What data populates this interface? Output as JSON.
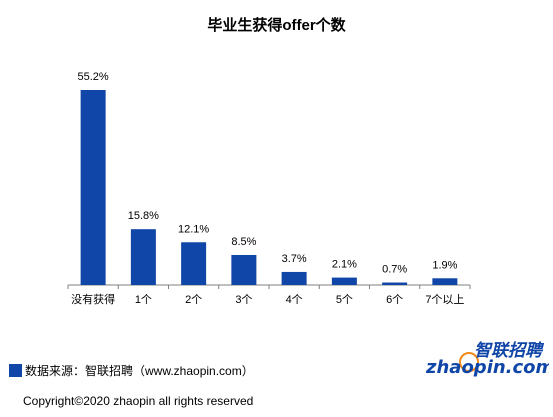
{
  "chart_data": {
    "type": "bar",
    "title": "毕业生获得offer个数",
    "categories": [
      "没有获得",
      "1个",
      "2个",
      "3个",
      "4个",
      "5个",
      "6个",
      "7个以上"
    ],
    "values": [
      55.2,
      15.8,
      12.1,
      8.5,
      3.7,
      2.1,
      0.7,
      1.9
    ],
    "value_labels": [
      "55.2%",
      "15.8%",
      "12.1%",
      "8.5%",
      "3.7%",
      "2.1%",
      "0.7%",
      "1.9%"
    ],
    "ylim": [
      0,
      55.2
    ],
    "grid": false,
    "bar_color": "#1046a8"
  },
  "footer": {
    "source_text": "数据来源：智联招聘（www.zhaopin.com）",
    "copyright": "Copyright©2020 zhaopin all rights reserved"
  },
  "logo": {
    "cn_text": "智联招聘",
    "en_text": "zhaopin.com",
    "colors": {
      "primary": "#1046a8",
      "accent": "#f08a1c"
    }
  }
}
